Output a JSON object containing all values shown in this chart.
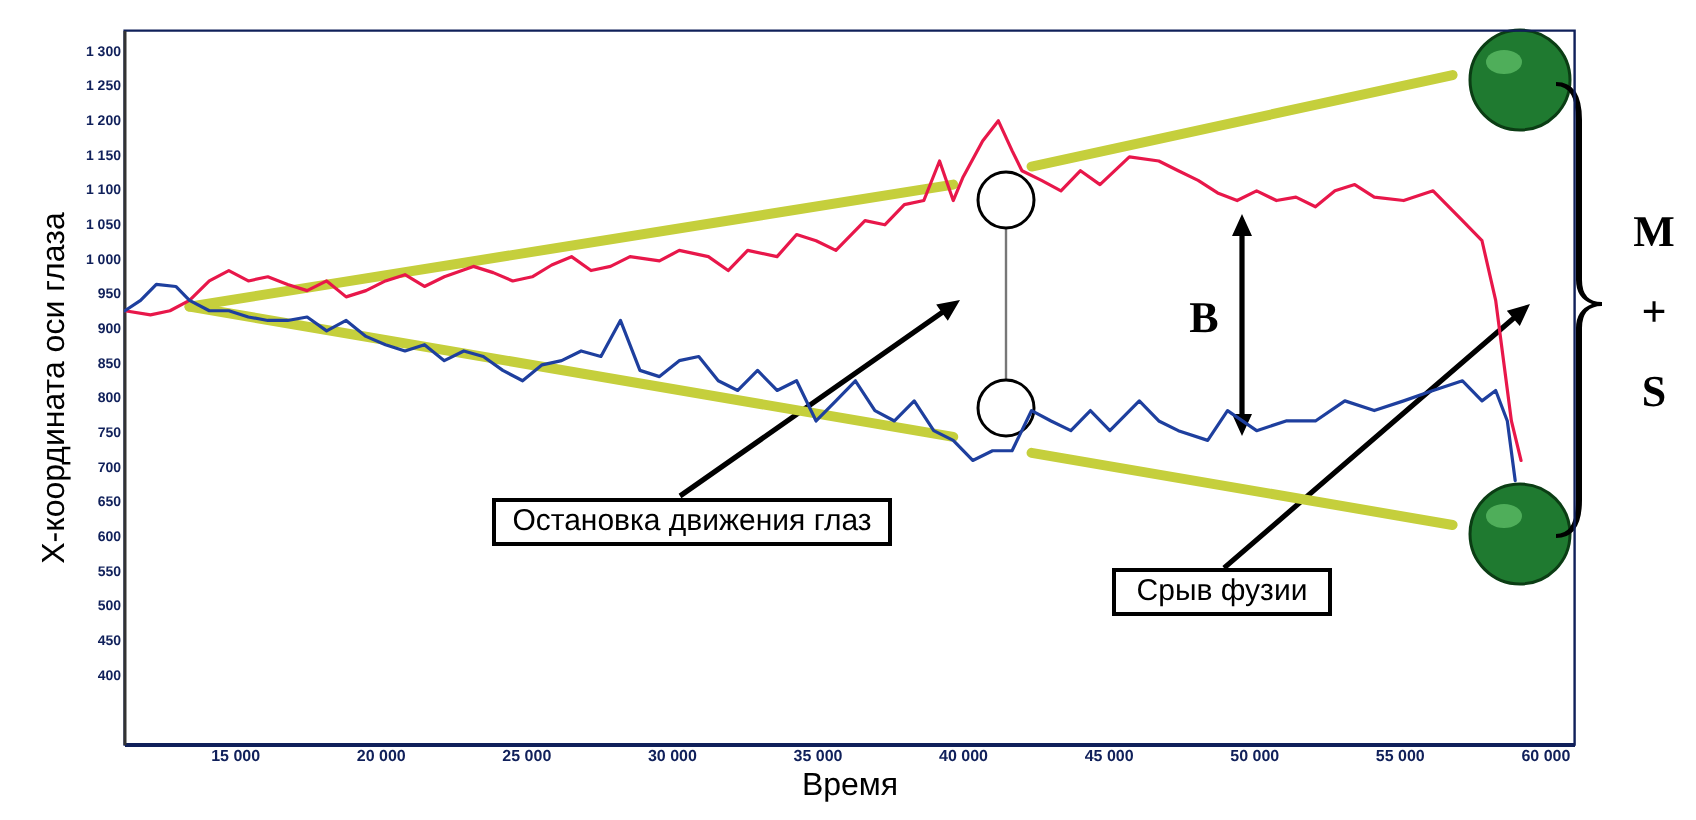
{
  "chart_data": {
    "type": "line",
    "xlabel": "Время",
    "ylabel": "X-координата оси глаза",
    "xlim": [
      11200,
      61000
    ],
    "ylim": [
      300,
      1330
    ],
    "xticks": [
      {
        "value": 15000,
        "label": "15 000"
      },
      {
        "value": 20000,
        "label": "20 000"
      },
      {
        "value": 25000,
        "label": "25 000"
      },
      {
        "value": 30000,
        "label": "30 000"
      },
      {
        "value": 35000,
        "label": "35 000"
      },
      {
        "value": 40000,
        "label": "40 000"
      },
      {
        "value": 45000,
        "label": "45 000"
      },
      {
        "value": 50000,
        "label": "50 000"
      },
      {
        "value": 55000,
        "label": "55 000"
      },
      {
        "value": 60000,
        "label": "60 000"
      }
    ],
    "yticks": [
      400,
      450,
      500,
      550,
      600,
      650,
      700,
      750,
      800,
      850,
      900,
      950,
      {
        "value": 1000,
        "label": "1 000"
      },
      {
        "value": 1050,
        "label": "1 050"
      },
      {
        "value": 1100,
        "label": "1 100"
      },
      {
        "value": 1150,
        "label": "1 150"
      },
      {
        "value": 1200,
        "label": "1 200"
      },
      {
        "value": 1250,
        "label": "1 250"
      },
      {
        "value": 1300,
        "label": "1 300"
      }
    ],
    "series": [
      {
        "color": "#e8174a",
        "x": [
          11230,
          12110,
          12780,
          13450,
          14130,
          14800,
          15470,
          16140,
          16820,
          17490,
          18160,
          18830,
          19510,
          20180,
          20850,
          21520,
          22200,
          23200,
          23880,
          24550,
          25220,
          25890,
          26570,
          27240,
          27910,
          28580,
          29590,
          30270,
          31270,
          31950,
          32620,
          33630,
          34300,
          34970,
          35650,
          36650,
          37330,
          38000,
          38670,
          39210,
          39680,
          40020,
          40690,
          41230,
          41700,
          42040,
          42710,
          43380,
          44050,
          44720,
          45730,
          46740,
          47410,
          48090,
          48760,
          49430,
          50100,
          50780,
          51450,
          52120,
          52790,
          53470,
          54140,
          55150,
          56160,
          57170,
          57840,
          58310,
          58850,
          59180
        ],
        "values": [
          925,
          919,
          925,
          940,
          968,
          983,
          968,
          974,
          963,
          954,
          968,
          945,
          954,
          968,
          977,
          960,
          974,
          989,
          980,
          968,
          974,
          991,
          1003,
          983,
          989,
          1003,
          997,
          1012,
          1003,
          983,
          1012,
          1003,
          1035,
          1026,
          1012,
          1055,
          1049,
          1078,
          1084,
          1141,
          1084,
          1118,
          1170,
          1199,
          1156,
          1127,
          1113,
          1098,
          1127,
          1107,
          1147,
          1141,
          1127,
          1113,
          1095,
          1084,
          1098,
          1084,
          1089,
          1075,
          1098,
          1107,
          1089,
          1084,
          1098,
          1055,
          1026,
          940,
          766,
          709
        ]
      },
      {
        "color": "#1e3f9e",
        "x": [
          11230,
          11770,
          12310,
          12980,
          13450,
          14130,
          14800,
          15470,
          16140,
          16820,
          17490,
          18160,
          18830,
          19510,
          20180,
          20850,
          21520,
          22200,
          22870,
          23540,
          24210,
          24890,
          25560,
          26230,
          26900,
          27580,
          28250,
          28920,
          29590,
          30270,
          30940,
          31610,
          32280,
          32960,
          33630,
          34300,
          34970,
          35650,
          36320,
          36990,
          37660,
          38340,
          39010,
          39680,
          40350,
          41030,
          41700,
          42370,
          43040,
          43720,
          44390,
          45060,
          46070,
          46740,
          47410,
          48420,
          49100,
          50100,
          51110,
          52120,
          53130,
          54140,
          55150,
          56160,
          57170,
          57840,
          58310,
          58710,
          58980
        ],
        "values": [
          925,
          940,
          963,
          960,
          940,
          925,
          925,
          916,
          911,
          911,
          916,
          896,
          911,
          888,
          876,
          867,
          876,
          853,
          867,
          859,
          839,
          824,
          847,
          853,
          867,
          859,
          911,
          839,
          830,
          853,
          859,
          824,
          810,
          839,
          810,
          824,
          766,
          795,
          824,
          781,
          766,
          795,
          752,
          738,
          709,
          723,
          723,
          781,
          766,
          752,
          781,
          752,
          795,
          766,
          752,
          738,
          781,
          752,
          766,
          766,
          795,
          781,
          795,
          810,
          824,
          795,
          810,
          766,
          680
        ]
      },
      {
        "type": "line",
        "color": "#c5cf3c",
        "x": [
          13450,
          39680
        ],
        "values": [
          931,
          1107
        ]
      },
      {
        "type": "line",
        "color": "#c5cf3c",
        "x": [
          42370,
          56830
        ],
        "values": [
          1133,
          1265
        ]
      },
      {
        "type": "line",
        "color": "#c5cf3c",
        "x": [
          13450,
          39680
        ],
        "values": [
          931,
          743
        ]
      },
      {
        "type": "line",
        "color": "#c5cf3c",
        "x": [
          42370,
          56830
        ],
        "values": [
          720,
          616
        ]
      }
    ],
    "annotations": [
      "Остановка движения глаз",
      "Срыв фузии",
      "B",
      "M + S"
    ]
  }
}
